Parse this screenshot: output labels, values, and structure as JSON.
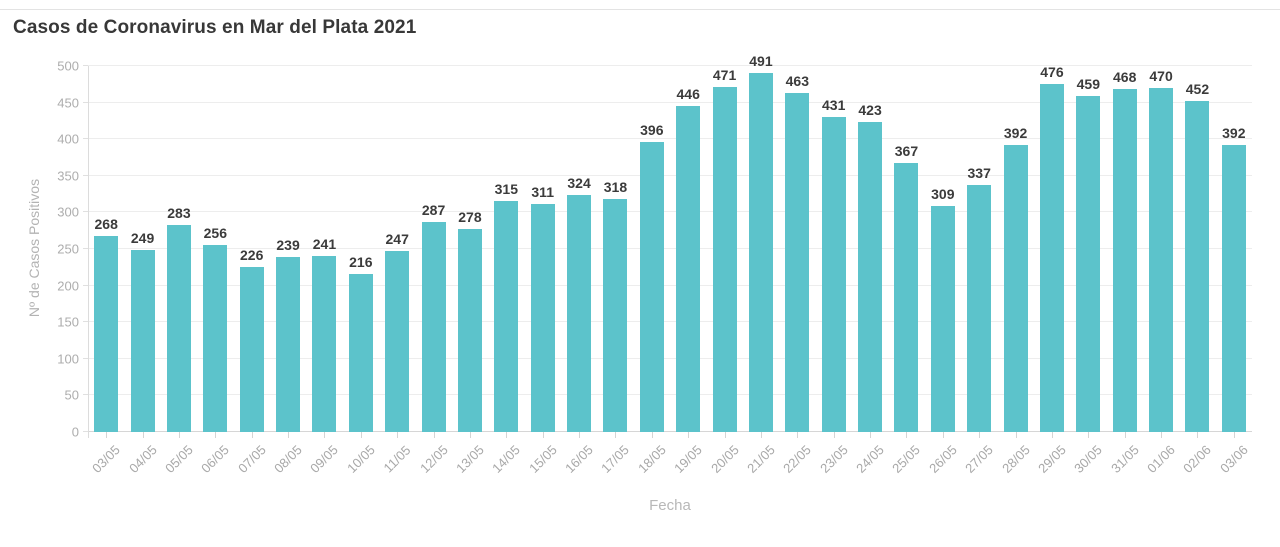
{
  "chart_data": {
    "type": "bar",
    "title": "Casos de Coronavirus en Mar del Plata 2021",
    "xlabel": "Fecha",
    "ylabel": "Nº de Casos Positivos",
    "ylim": [
      0,
      500
    ],
    "yticks": [
      0,
      50,
      100,
      150,
      200,
      250,
      300,
      350,
      400,
      450,
      500
    ],
    "grid": true,
    "legend_position": "none",
    "bar_color": "#5cc3cb",
    "value_label_color": "#3b3b3b",
    "categories": [
      "03/05",
      "04/05",
      "05/05",
      "06/05",
      "07/05",
      "08/05",
      "09/05",
      "10/05",
      "11/05",
      "12/05",
      "13/05",
      "14/05",
      "15/05",
      "16/05",
      "17/05",
      "18/05",
      "19/05",
      "20/05",
      "21/05",
      "22/05",
      "23/05",
      "24/05",
      "25/05",
      "26/05",
      "27/05",
      "28/05",
      "29/05",
      "30/05",
      "31/05",
      "01/06",
      "02/06",
      "03/06"
    ],
    "values": [
      268,
      249,
      283,
      256,
      226,
      239,
      241,
      216,
      247,
      287,
      278,
      315,
      311,
      324,
      318,
      396,
      446,
      471,
      491,
      463,
      431,
      423,
      367,
      309,
      337,
      392,
      476,
      459,
      468,
      470,
      452,
      392
    ]
  }
}
